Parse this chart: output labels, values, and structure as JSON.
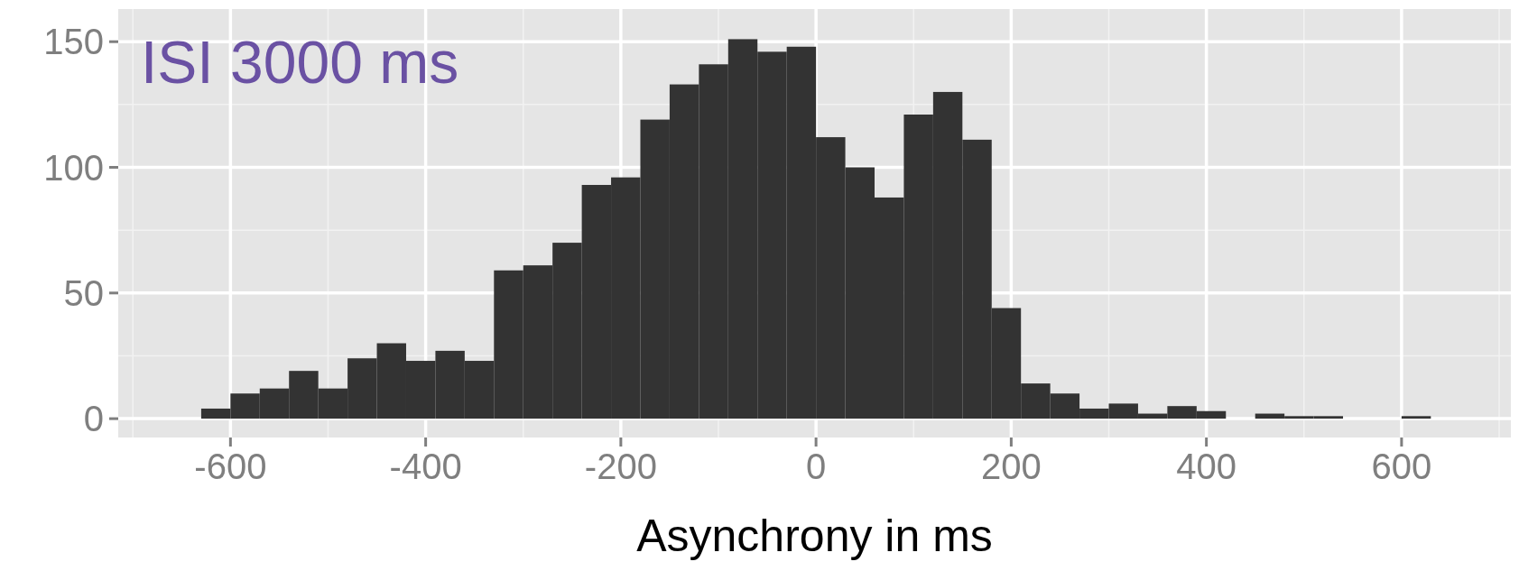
{
  "chart_data": {
    "type": "histogram",
    "xlabel": "Asynchrony in ms",
    "annotations": [
      "ISI 3000 ms"
    ],
    "color": "#333333",
    "bins": [
      -630,
      -600,
      -570,
      -540,
      -510,
      -480,
      -450,
      -420,
      -390,
      -360,
      -330,
      -300,
      -270,
      -240,
      -210,
      -180,
      -150,
      -120,
      -90,
      -60,
      -30,
      0,
      30,
      60,
      90,
      120,
      150,
      180,
      210,
      240,
      270,
      300,
      330,
      360,
      390,
      420,
      450,
      480,
      510,
      540,
      570,
      600,
      630
    ],
    "values": [
      4,
      10,
      12,
      19,
      12,
      24,
      30,
      23,
      27,
      23,
      59,
      61,
      70,
      93,
      96,
      119,
      133,
      141,
      151,
      146,
      148,
      112,
      100,
      88,
      121,
      130,
      111,
      44,
      14,
      10,
      4,
      6,
      2,
      5,
      3,
      0,
      2,
      1,
      1,
      0,
      0,
      1
    ],
    "xlim": [
      -715,
      712
    ],
    "xticks": [
      -600,
      -400,
      -200,
      0,
      200,
      400,
      600
    ],
    "ylim": [
      -7.5,
      163
    ],
    "yticks": [
      0,
      50,
      100,
      150
    ],
    "grid": true
  }
}
